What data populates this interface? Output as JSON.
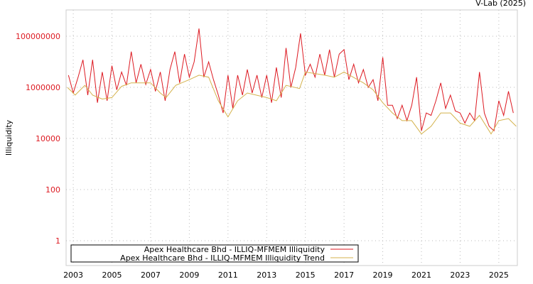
{
  "source_label": "V-Lab (2025)",
  "chart_data": {
    "type": "line",
    "title": "",
    "xlabel": "",
    "ylabel": "Illiquidity",
    "yscale": "log",
    "xlim": [
      2002.63,
      2025.96
    ],
    "ylim": [
      0.107,
      1070000000.0
    ],
    "grid": true,
    "legend_position": "bottom-left",
    "x_ticks": [
      2003,
      2005,
      2007,
      2009,
      2011,
      2013,
      2015,
      2017,
      2019,
      2021,
      2023,
      2025
    ],
    "x_tick_labels": [
      "2003",
      "2005",
      "2007",
      "2009",
      "2011",
      "2013",
      "2015",
      "2017",
      "2019",
      "2021",
      "2023",
      "2025"
    ],
    "y_ticks": [
      1,
      100,
      10000,
      1000000,
      100000000
    ],
    "y_tick_labels": [
      "1",
      "100",
      "10000",
      "1000000",
      "100000000"
    ],
    "series": [
      {
        "name": "Apex Healthcare Bhd - ILLIQ-MFMEM Illiquidity",
        "color": "#dd1a22",
        "x_start": 2002.75,
        "x_step": 0.25,
        "values": [
          3000000.0,
          600000.0,
          2500000.0,
          12000000.0,
          500000.0,
          12000000.0,
          250000.0,
          4000000.0,
          300000.0,
          7000000.0,
          800000.0,
          4000000.0,
          1200000.0,
          25000000.0,
          1500000.0,
          8000000.0,
          1300000.0,
          5000000.0,
          700000.0,
          4000000.0,
          300000.0,
          5000000.0,
          25000000.0,
          1500000.0,
          20000000.0,
          2500000.0,
          10000000.0,
          200000000.0,
          2500000.0,
          10000000.0,
          2000000.0,
          500000.0,
          100000.0,
          3000000.0,
          150000.0,
          3000000.0,
          500000.0,
          5000000.0,
          600000.0,
          3000000.0,
          400000.0,
          3000000.0,
          250000.0,
          6000000.0,
          400000.0,
          35000000.0,
          1000000.0,
          6000000.0,
          130000000.0,
          3000000.0,
          8000000.0,
          2500000.0,
          20000000.0,
          3000000.0,
          30000000.0,
          2500000.0,
          20000000.0,
          30000000.0,
          2000000.0,
          8000000.0,
          1500000.0,
          5000000.0,
          1000000.0,
          2000000.0,
          300000.0,
          15000000.0,
          200000.0,
          200000.0,
          60000.0,
          200000.0,
          50000.0,
          200000.0,
          2500000.0,
          20000.0,
          100000.0,
          80000.0,
          300000.0,
          1500000.0,
          150000.0,
          500000.0,
          120000.0,
          100000.0,
          40000.0,
          100000.0,
          50000.0,
          4000000.0,
          100000.0,
          30000.0,
          20000.0,
          300000.0,
          80000.0,
          700000.0,
          100000.0
        ]
      },
      {
        "name": "Apex Healthcare Bhd - ILLIQ-MFMEM Illiquidity Trend",
        "color": "#d4b24c",
        "x": [
          2002.7,
          2003.1,
          2003.6,
          2004.0,
          2004.5,
          2005.0,
          2005.5,
          2006.0,
          2007.0,
          2007.5,
          2007.8,
          2008.3,
          2009.0,
          2009.5,
          2010.0,
          2010.5,
          2011.0,
          2011.5,
          2012.0,
          2013.0,
          2013.5,
          2014.0,
          2014.7,
          2015.0,
          2016.0,
          2016.5,
          2017.0,
          2018.0,
          2018.5,
          2019.0,
          2019.5,
          2020.0,
          2020.5,
          2021.0,
          2021.5,
          2022.0,
          2022.5,
          2023.0,
          2023.5,
          2024.0,
          2024.6,
          2025.0,
          2025.5,
          2025.9
        ],
        "values": [
          1000000.0,
          500000.0,
          1200000.0,
          500000.0,
          350000.0,
          400000.0,
          1100000.0,
          1500000.0,
          1500000.0,
          600000.0,
          400000.0,
          1200000.0,
          2000000.0,
          3000000.0,
          2500000.0,
          300000.0,
          70000.0,
          300000.0,
          600000.0,
          400000.0,
          300000.0,
          1200000.0,
          900000.0,
          4000000.0,
          3000000.0,
          2500000.0,
          4000000.0,
          1500000.0,
          800000.0,
          250000.0,
          100000.0,
          50000.0,
          50000.0,
          15000.0,
          30000.0,
          100000.0,
          100000.0,
          40000.0,
          30000.0,
          80000.0,
          15000.0,
          50000.0,
          60000.0,
          30000.0
        ]
      }
    ]
  }
}
